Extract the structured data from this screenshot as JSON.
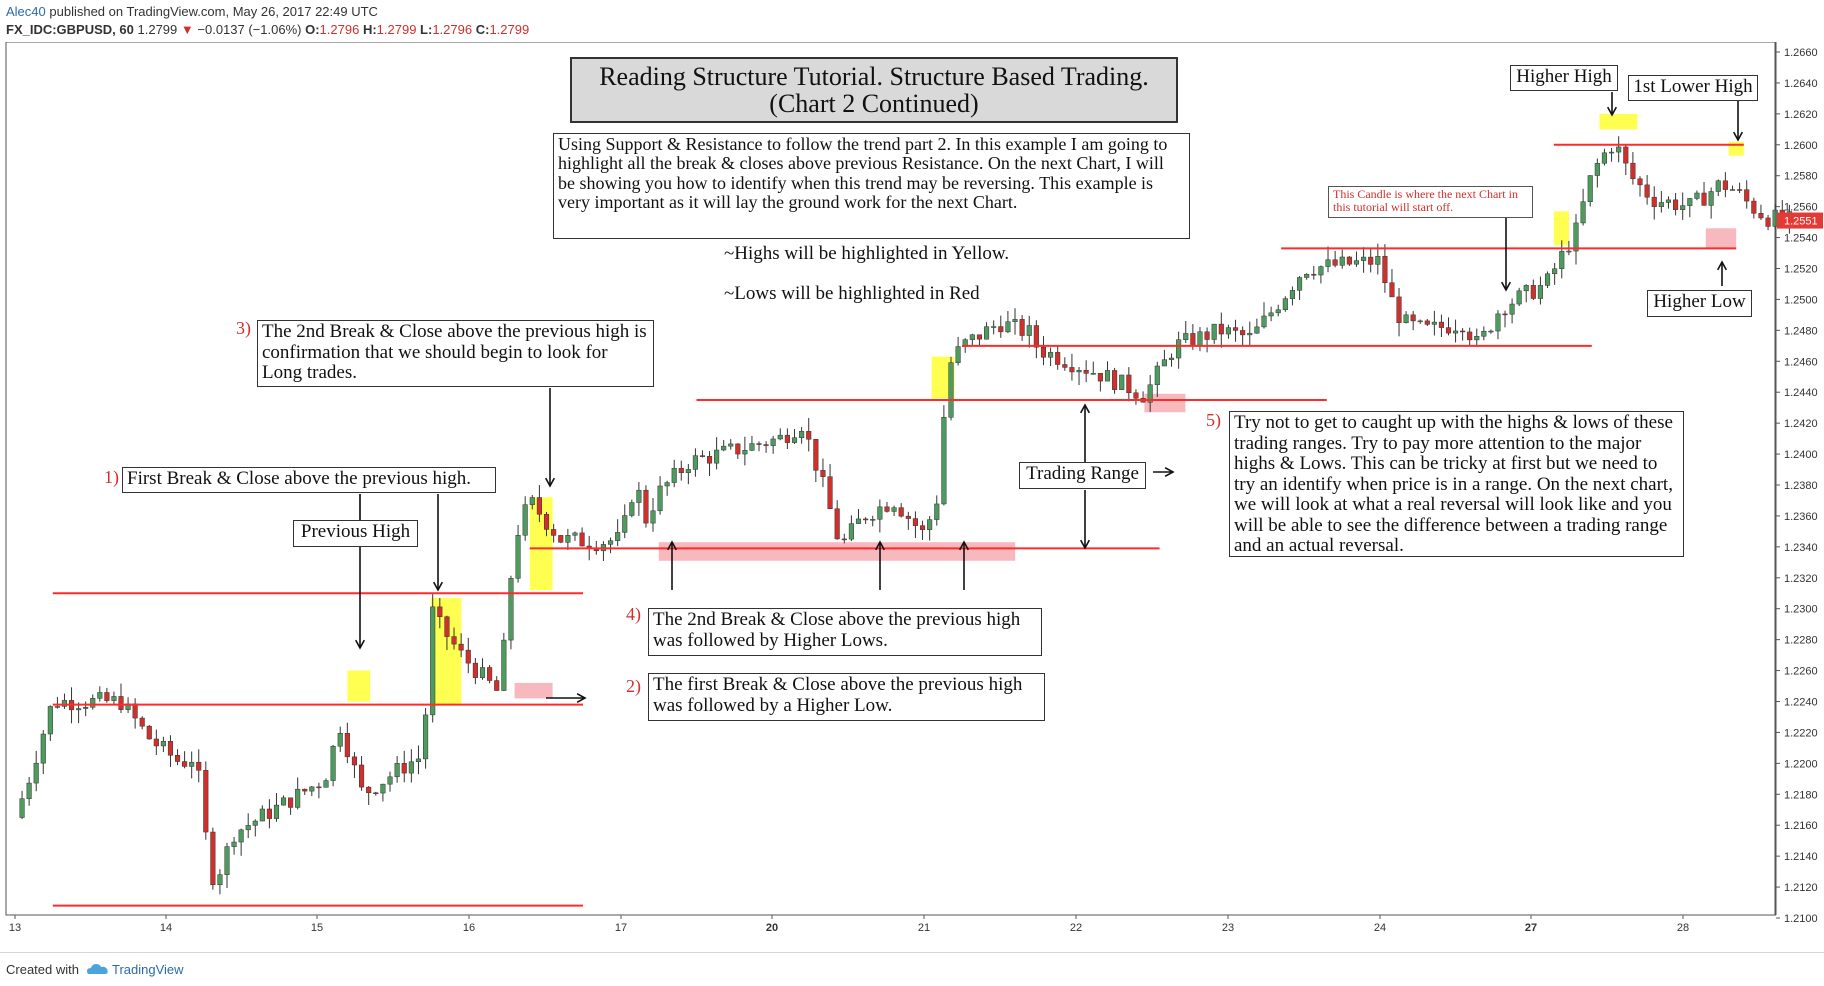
{
  "header": {
    "user": "Alec40",
    "published": "published on TradingView.com, May 26, 2017 22:49 UTC",
    "symbol": "FX_IDC:GBPUSD, 60",
    "last": "1.2799",
    "change": "−0.0137 (−1.06%)",
    "o_label": "O:",
    "o": "1.2796",
    "h_label": "H:",
    "h": "1.2799",
    "l_label": "L:",
    "l": "1.2796",
    "c_label": "C:",
    "c": "1.2799"
  },
  "footer": {
    "created": "Created with",
    "brand": "TradingView"
  },
  "annotations": {
    "title": "Reading Structure Tutorial. Structure Based Trading.",
    "title2": "(Chart 2 Continued)",
    "intro": "Using Support & Resistance to follow the trend part 2. In this example I am going to highlight all the break & closes above previous Resistance. On the next Chart, I will be showing you how to identify when this trend may be reversing. This example is very important as it will lay the ground work for the next Chart.",
    "highs_note": "~Highs will be highlighted in Yellow.",
    "lows_note": "~Lows will be highlighted in Red",
    "n1": "1)",
    "t1": "First Break & Close above the previous high.",
    "prev_high": "Previous High",
    "n2": "2)",
    "t2": "The first Break & Close above the previous high was followed by a Higher Low.",
    "n3": "3)",
    "t3": "The 2nd Break & Close above the previous high is confirmation that we should begin to look for Long trades.",
    "n4": "4)",
    "t4": "The 2nd Break & Close above the previous high was followed by Higher Lows.",
    "n5": "5)",
    "t5": "Try not to get to caught up with the highs & lows of these trading ranges. Try to pay more attention to the major highs & Lows. This can be tricky at first but we need to try an identify when price is in a range. On the next chart, we will look at what a real reversal will look like and you will be able to see the difference between a trading range and an actual reversal.",
    "trading_range": "Trading Range",
    "next_chart_candle": "This Candle is where the next Chart in this tutorial will start off.",
    "higher_high": "Higher High",
    "first_lower_high": "1st Lower High",
    "higher_low": "Higher Low"
  },
  "chart_data": {
    "type": "candlestick",
    "symbol": "FX_IDC:GBPUSD",
    "interval": "60",
    "ylim": [
      1.21,
      1.266
    ],
    "y_ticks": [
      "1.2660",
      "1.2640",
      "1.2620",
      "1.2600",
      "1.2580",
      "1.2560",
      "1.2540",
      "1.2520",
      "1.2500",
      "1.2480",
      "1.2460",
      "1.2440",
      "1.2420",
      "1.2400",
      "1.2380",
      "1.2360",
      "1.2340",
      "1.2320",
      "1.2300",
      "1.2280",
      "1.2260",
      "1.2240",
      "1.2220",
      "1.2200",
      "1.2180",
      "1.2160",
      "1.2140",
      "1.2120",
      "1.2100"
    ],
    "x_ticks": [
      "13",
      "14",
      "15",
      "16",
      "17",
      "20",
      "21",
      "22",
      "23",
      "24",
      "27",
      "28"
    ],
    "last_price": "1.2551",
    "up_color": "#4d9b5e",
    "down_color": "#d0302c",
    "level_color": "#ff2a2a",
    "highlight_high_color": "#ffff33",
    "highlight_low_color": "#f4a0a8",
    "path": [
      [
        0,
        1.2165
      ],
      [
        0.08,
        1.2186
      ],
      [
        0.25,
        1.224
      ],
      [
        0.7,
        1.224
      ],
      [
        0.9,
        1.2215
      ],
      [
        1.1,
        1.22
      ],
      [
        1.2,
        1.2205
      ],
      [
        1.25,
        1.216
      ],
      [
        1.32,
        1.2122
      ],
      [
        1.45,
        1.2155
      ],
      [
        1.8,
        1.2175
      ],
      [
        2.05,
        1.219
      ],
      [
        2.15,
        1.2225
      ],
      [
        2.3,
        1.218
      ],
      [
        2.6,
        1.22
      ],
      [
        2.7,
        1.2205
      ],
      [
        2.75,
        1.23
      ],
      [
        2.8,
        1.229
      ],
      [
        2.95,
        1.227
      ],
      [
        3.2,
        1.2245
      ],
      [
        3.3,
        1.2345
      ],
      [
        3.4,
        1.237
      ],
      [
        3.6,
        1.2345
      ],
      [
        3.85,
        1.2343
      ],
      [
        4.0,
        1.2345
      ],
      [
        4.1,
        1.2385
      ],
      [
        4.15,
        1.2355
      ],
      [
        4.25,
        1.2375
      ],
      [
        4.45,
        1.2395
      ],
      [
        5.05,
        1.241
      ],
      [
        5.2,
        1.242
      ],
      [
        5.35,
        1.2375
      ],
      [
        5.45,
        1.234
      ],
      [
        5.6,
        1.236
      ],
      [
        5.8,
        1.237
      ],
      [
        6.0,
        1.2348
      ],
      [
        6.1,
        1.2375
      ],
      [
        6.15,
        1.2455
      ],
      [
        6.25,
        1.247
      ],
      [
        6.5,
        1.2485
      ],
      [
        6.7,
        1.2478
      ],
      [
        6.75,
        1.2468
      ],
      [
        7.2,
        1.245
      ],
      [
        7.45,
        1.2438
      ],
      [
        7.65,
        1.247
      ],
      [
        7.95,
        1.248
      ],
      [
        8.15,
        1.2475
      ],
      [
        8.35,
        1.25
      ],
      [
        8.5,
        1.252
      ],
      [
        9.0,
        1.2525
      ],
      [
        9.05,
        1.2505
      ],
      [
        9.15,
        1.2485
      ],
      [
        9.3,
        1.248
      ],
      [
        9.55,
        1.2485
      ],
      [
        9.65,
        1.247
      ],
      [
        9.8,
        1.2495
      ],
      [
        10.1,
        1.251
      ],
      [
        10.3,
        1.2545
      ],
      [
        10.38,
        1.2575
      ],
      [
        10.45,
        1.259
      ],
      [
        10.55,
        1.2602
      ],
      [
        10.65,
        1.258
      ],
      [
        10.8,
        1.2565
      ],
      [
        11.05,
        1.256
      ],
      [
        11.25,
        1.2575
      ],
      [
        11.35,
        1.257
      ],
      [
        11.45,
        1.256
      ],
      [
        11.55,
        1.2553
      ],
      [
        11.7,
        1.2551
      ]
    ],
    "levels": [
      {
        "price": 1.2108,
        "from": 0.25,
        "to": 3.75
      },
      {
        "price": 1.2238,
        "from": 0.25,
        "to": 3.75
      },
      {
        "price": 1.231,
        "from": 0.25,
        "to": 3.75
      },
      {
        "price": 1.2339,
        "from": 3.4,
        "to": 7.55
      },
      {
        "price": 1.2435,
        "from": 4.5,
        "to": 8.65
      },
      {
        "price": 1.247,
        "from": 6.25,
        "to": 10.4
      },
      {
        "price": 1.2533,
        "from": 8.35,
        "to": 11.35
      },
      {
        "price": 1.26,
        "from": 10.15,
        "to": 11.4
      }
    ],
    "highlights_high": [
      {
        "x0": 2.2,
        "x1": 2.35,
        "p0": 1.224,
        "p1": 1.226
      },
      {
        "x0": 2.75,
        "x1": 2.95,
        "p0": 1.2238,
        "p1": 1.2307
      },
      {
        "x0": 3.4,
        "x1": 3.55,
        "p0": 1.2312,
        "p1": 1.2372
      },
      {
        "x0": 6.05,
        "x1": 6.2,
        "p0": 1.2436,
        "p1": 1.2463
      },
      {
        "x0": 10.15,
        "x1": 10.25,
        "p0": 1.2535,
        "p1": 1.2557
      },
      {
        "x0": 10.45,
        "x1": 10.7,
        "p0": 1.261,
        "p1": 1.262
      },
      {
        "x0": 11.3,
        "x1": 11.4,
        "p0": 1.2593,
        "p1": 1.2602
      }
    ],
    "highlights_low": [
      {
        "x0": 3.3,
        "x1": 3.55,
        "p0": 1.2242,
        "p1": 1.2252
      },
      {
        "x0": 4.25,
        "x1": 6.6,
        "p0": 1.2331,
        "p1": 1.2343
      },
      {
        "x0": 7.45,
        "x1": 7.72,
        "p0": 1.2427,
        "p1": 1.2439
      },
      {
        "x0": 11.15,
        "x1": 11.35,
        "p0": 1.2533,
        "p1": 1.2546
      }
    ]
  }
}
